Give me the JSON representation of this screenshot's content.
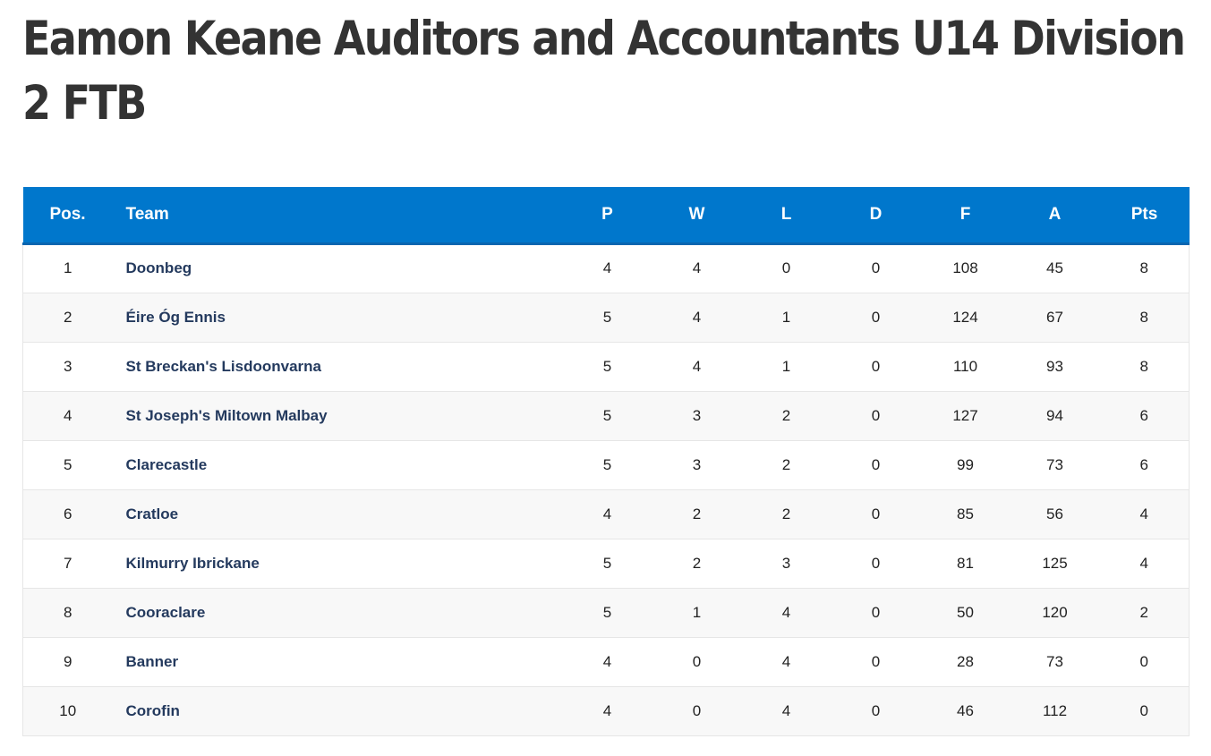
{
  "page": {
    "title": "Eamon Keane Auditors and Accountants U14 Division 2 FTB"
  },
  "table": {
    "headers": {
      "pos": "Pos.",
      "team": "Team",
      "p": "P",
      "w": "W",
      "l": "L",
      "d": "D",
      "f": "F",
      "a": "A",
      "pts": "Pts"
    },
    "rows": [
      {
        "pos": "1",
        "team": "Doonbeg",
        "p": "4",
        "w": "4",
        "l": "0",
        "d": "0",
        "f": "108",
        "a": "45",
        "pts": "8"
      },
      {
        "pos": "2",
        "team": "Éire Óg Ennis",
        "p": "5",
        "w": "4",
        "l": "1",
        "d": "0",
        "f": "124",
        "a": "67",
        "pts": "8"
      },
      {
        "pos": "3",
        "team": "St Breckan's Lisdoonvarna",
        "p": "5",
        "w": "4",
        "l": "1",
        "d": "0",
        "f": "110",
        "a": "93",
        "pts": "8"
      },
      {
        "pos": "4",
        "team": "St Joseph's Miltown Malbay",
        "p": "5",
        "w": "3",
        "l": "2",
        "d": "0",
        "f": "127",
        "a": "94",
        "pts": "6"
      },
      {
        "pos": "5",
        "team": "Clarecastle",
        "p": "5",
        "w": "3",
        "l": "2",
        "d": "0",
        "f": "99",
        "a": "73",
        "pts": "6"
      },
      {
        "pos": "6",
        "team": "Cratloe",
        "p": "4",
        "w": "2",
        "l": "2",
        "d": "0",
        "f": "85",
        "a": "56",
        "pts": "4"
      },
      {
        "pos": "7",
        "team": "Kilmurry Ibrickane",
        "p": "5",
        "w": "2",
        "l": "3",
        "d": "0",
        "f": "81",
        "a": "125",
        "pts": "4"
      },
      {
        "pos": "8",
        "team": "Cooraclare",
        "p": "5",
        "w": "1",
        "l": "4",
        "d": "0",
        "f": "50",
        "a": "120",
        "pts": "2"
      },
      {
        "pos": "9",
        "team": "Banner",
        "p": "4",
        "w": "0",
        "l": "4",
        "d": "0",
        "f": "28",
        "a": "73",
        "pts": "0"
      },
      {
        "pos": "10",
        "team": "Corofin",
        "p": "4",
        "w": "0",
        "l": "4",
        "d": "0",
        "f": "46",
        "a": "112",
        "pts": "0"
      }
    ]
  },
  "colors": {
    "header_bg": "#0077cc",
    "team_link": "#243a5e",
    "title_text": "#333333"
  }
}
